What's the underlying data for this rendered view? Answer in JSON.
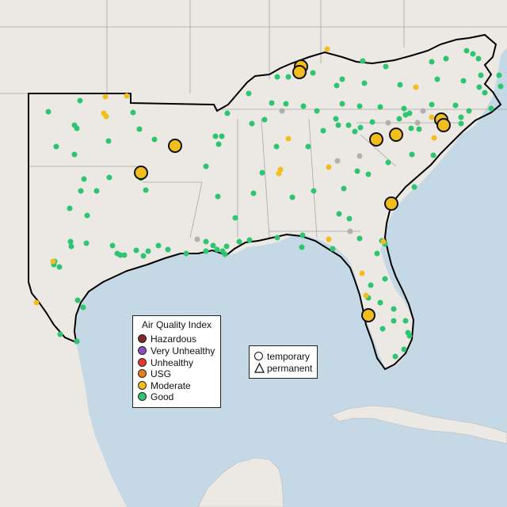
{
  "legend": {
    "title": "Air Quality Index",
    "categories": [
      {
        "label": "Hazardous",
        "color": "#7e2b28"
      },
      {
        "label": "Very Unhealthy",
        "color": "#8e4fbf"
      },
      {
        "label": "Unhealthy",
        "color": "#e5392f"
      },
      {
        "label": "USG",
        "color": "#e77f1c"
      },
      {
        "label": "Moderate",
        "color": "#f2be1d"
      },
      {
        "label": "Good",
        "color": "#2ec571"
      }
    ],
    "monitor_types": [
      {
        "label": "temporary",
        "icon": "circle-icon"
      },
      {
        "label": "permanent",
        "icon": "triangle-icon"
      }
    ]
  },
  "colors": {
    "water": "#c5d8e6",
    "land": "#ece8e4",
    "state_border": "#a8a8a8",
    "region_outline": "#000000",
    "no_data": "#b0b0b0"
  },
  "monitors": {
    "large_moderate": [
      [
        380,
        84
      ],
      [
        378,
        91
      ],
      [
        221,
        184
      ],
      [
        178,
        218
      ],
      [
        475,
        176
      ],
      [
        500,
        170
      ],
      [
        557,
        151
      ],
      [
        560,
        158
      ],
      [
        494,
        257
      ],
      [
        465,
        398
      ]
    ],
    "small_moderate": [
      [
        413,
        62
      ],
      [
        133,
        122
      ],
      [
        160,
        121
      ],
      [
        131,
        143
      ],
      [
        134,
        147
      ],
      [
        525,
        110
      ],
      [
        364,
        175
      ],
      [
        354,
        214
      ],
      [
        352,
        219
      ],
      [
        415,
        211
      ],
      [
        545,
        148
      ],
      [
        548,
        174
      ],
      [
        67,
        330
      ],
      [
        46,
        382
      ],
      [
        415,
        302
      ],
      [
        457,
        345
      ],
      [
        484,
        305
      ],
      [
        462,
        373
      ]
    ],
    "good": [
      [
        458,
        77
      ],
      [
        487,
        84
      ],
      [
        545,
        78
      ],
      [
        589,
        64
      ],
      [
        597,
        68
      ],
      [
        604,
        74
      ],
      [
        563,
        74
      ],
      [
        350,
        97
      ],
      [
        364,
        97
      ],
      [
        395,
        92
      ],
      [
        432,
        100
      ],
      [
        425,
        108
      ],
      [
        460,
        105
      ],
      [
        505,
        107
      ],
      [
        552,
        100
      ],
      [
        585,
        102
      ],
      [
        607,
        95
      ],
      [
        605,
        110
      ],
      [
        630,
        95
      ],
      [
        632,
        109
      ],
      [
        612,
        117
      ],
      [
        314,
        118
      ],
      [
        343,
        130
      ],
      [
        361,
        131
      ],
      [
        383,
        134
      ],
      [
        400,
        140
      ],
      [
        432,
        131
      ],
      [
        454,
        134
      ],
      [
        480,
        135
      ],
      [
        510,
        137
      ],
      [
        545,
        132
      ],
      [
        575,
        133
      ],
      [
        592,
        140
      ],
      [
        620,
        137
      ],
      [
        61,
        141
      ],
      [
        101,
        127
      ],
      [
        94,
        158
      ],
      [
        97,
        162
      ],
      [
        137,
        178
      ],
      [
        168,
        142
      ],
      [
        176,
        163
      ],
      [
        195,
        176
      ],
      [
        287,
        143
      ],
      [
        272,
        172
      ],
      [
        276,
        182
      ],
      [
        280,
        172
      ],
      [
        318,
        156
      ],
      [
        334,
        151
      ],
      [
        349,
        185
      ],
      [
        389,
        185
      ],
      [
        408,
        165
      ],
      [
        424,
        150
      ],
      [
        427,
        158
      ],
      [
        440,
        158
      ],
      [
        448,
        166
      ],
      [
        455,
        161
      ],
      [
        470,
        154
      ],
      [
        504,
        150
      ],
      [
        512,
        145
      ],
      [
        517,
        143
      ],
      [
        519,
        162
      ],
      [
        529,
        163
      ],
      [
        582,
        148
      ],
      [
        582,
        156
      ],
      [
        71,
        185
      ],
      [
        94,
        195
      ],
      [
        106,
        226
      ],
      [
        102,
        241
      ],
      [
        122,
        241
      ],
      [
        88,
        263
      ],
      [
        110,
        272
      ],
      [
        138,
        224
      ],
      [
        178,
        225
      ],
      [
        184,
        240
      ],
      [
        260,
        210
      ],
      [
        275,
        248
      ],
      [
        320,
        244
      ],
      [
        331,
        218
      ],
      [
        369,
        249
      ],
      [
        396,
        241
      ],
      [
        434,
        238
      ],
      [
        428,
        270
      ],
      [
        451,
        216
      ],
      [
        465,
        220
      ],
      [
        490,
        205
      ],
      [
        520,
        195
      ],
      [
        523,
        236
      ],
      [
        547,
        196
      ],
      [
        89,
        305
      ],
      [
        90,
        311
      ],
      [
        109,
        307
      ],
      [
        142,
        310
      ],
      [
        148,
        320
      ],
      [
        152,
        322
      ],
      [
        157,
        322
      ],
      [
        172,
        316
      ],
      [
        181,
        323
      ],
      [
        187,
        317
      ],
      [
        200,
        310
      ],
      [
        212,
        315
      ],
      [
        235,
        320
      ],
      [
        260,
        317
      ],
      [
        260,
        305
      ],
      [
        269,
        310
      ],
      [
        274,
        315
      ],
      [
        281,
        317
      ],
      [
        284,
        321
      ],
      [
        286,
        311
      ],
      [
        297,
        275
      ],
      [
        302,
        305
      ],
      [
        315,
        303
      ],
      [
        350,
        300
      ],
      [
        382,
        297
      ],
      [
        381,
        312
      ],
      [
        420,
        314
      ],
      [
        441,
        276
      ],
      [
        454,
        301
      ],
      [
        476,
        320
      ],
      [
        482,
        304
      ],
      [
        486,
        308
      ],
      [
        486,
        352
      ],
      [
        468,
        360
      ],
      [
        465,
        376
      ],
      [
        480,
        382
      ],
      [
        497,
        390
      ],
      [
        483,
        415
      ],
      [
        497,
        405
      ],
      [
        512,
        405
      ],
      [
        515,
        420
      ],
      [
        517,
        424
      ],
      [
        510,
        441
      ],
      [
        499,
        450
      ],
      [
        69,
        330
      ],
      [
        75,
        337
      ],
      [
        98,
        379
      ],
      [
        105,
        388
      ],
      [
        76,
        422
      ],
      [
        97,
        431
      ],
      [
        68,
        334
      ]
    ],
    "no_data": [
      [
        356,
        140
      ],
      [
        426,
        203
      ],
      [
        454,
        197
      ],
      [
        490,
        155
      ],
      [
        527,
        155
      ],
      [
        249,
        302
      ],
      [
        442,
        292
      ],
      [
        534,
        140
      ]
    ]
  }
}
